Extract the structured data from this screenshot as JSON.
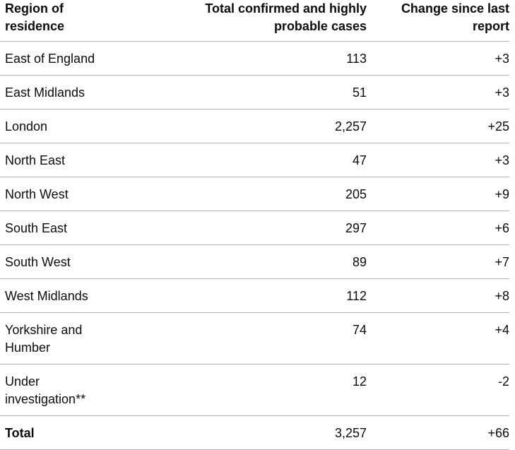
{
  "table": {
    "headers": [
      "Region of residence",
      "Total confirmed and highly probable cases",
      "Change since last report"
    ],
    "rows": [
      {
        "region": "East of England",
        "total": "113",
        "change": "+3"
      },
      {
        "region": "East Midlands",
        "total": "51",
        "change": "+3"
      },
      {
        "region": "London",
        "total": "2,257",
        "change": "+25"
      },
      {
        "region": "North East",
        "total": "47",
        "change": "+3"
      },
      {
        "region": "North West",
        "total": "205",
        "change": "+9"
      },
      {
        "region": "South East",
        "total": "297",
        "change": "+6"
      },
      {
        "region": "South West",
        "total": "89",
        "change": "+7"
      },
      {
        "region": "West Midlands",
        "total": "112",
        "change": "+8"
      },
      {
        "region": "Yorkshire and Humber",
        "total": "74",
        "change": "+4"
      },
      {
        "region": "Under investigation**",
        "total": "12",
        "change": "-2"
      }
    ],
    "total_row": {
      "region": "Total",
      "total": "3,257",
      "change": "+66"
    }
  }
}
